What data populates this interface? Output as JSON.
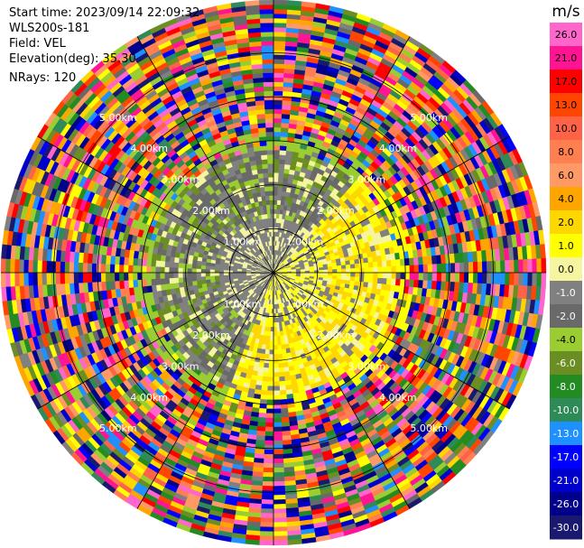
{
  "header": {
    "start_time": "Start time: 2023/09/14 22:09:32",
    "instrument": "WLS200s-181",
    "field": "Field: VEL",
    "elevation": "Elevation(deg): 35.30",
    "nrays": "NRays: 120"
  },
  "chart_data": {
    "type": "heatmap",
    "projection": "polar PPI scan",
    "field": "VEL",
    "units": "m/s",
    "nrays": 120,
    "range_rings_km": [
      1.0,
      2.0,
      3.0,
      4.0,
      5.0
    ],
    "ring_labels": [
      "1.00km",
      "2.00km",
      "3.00km",
      "4.00km",
      "5.00km"
    ],
    "max_range_km": 6.2,
    "colorbar": {
      "label": "m/s",
      "ticks": [
        "26.0",
        "21.0",
        "17.0",
        "13.0",
        "10.0",
        "8.0",
        "6.0",
        "4.0",
        "2.0",
        "1.0",
        "0.0",
        "-1.0",
        "-2.0",
        "-4.0",
        "-6.0",
        "-8.0",
        "-10.0",
        "-13.0",
        "-17.0",
        "-21.0",
        "-26.0",
        "-30.0"
      ],
      "colors": [
        "#ff66cc",
        "#ff1493",
        "#ff0000",
        "#ff4500",
        "#ff6347",
        "#ff7f50",
        "#ff9966",
        "#ffa500",
        "#ffd700",
        "#ffff00",
        "#f5f5a0",
        "#808080",
        "#696969",
        "#9acd32",
        "#6b8e23",
        "#228b22",
        "#2e8b57",
        "#1e90ff",
        "#0000ff",
        "#0000cd",
        "#00008b",
        "#191970"
      ]
    },
    "regions": [
      {
        "description": "near-range low velocity",
        "range_km": [
          0,
          1.3
        ],
        "values_ms": [
          -1.0,
          0.0,
          1.0
        ]
      },
      {
        "description": "east and south sector positive",
        "range_km": [
          0.3,
          2.8
        ],
        "values_ms": [
          1.0,
          2.0
        ]
      },
      {
        "description": "west and north sector negative",
        "range_km": [
          0.3,
          2.8
        ],
        "values_ms": [
          -2.0,
          -4.0,
          -6.0
        ]
      },
      {
        "description": "far range noise",
        "range_km": [
          2.8,
          6.2
        ],
        "values_ms": "mixed"
      }
    ]
  }
}
